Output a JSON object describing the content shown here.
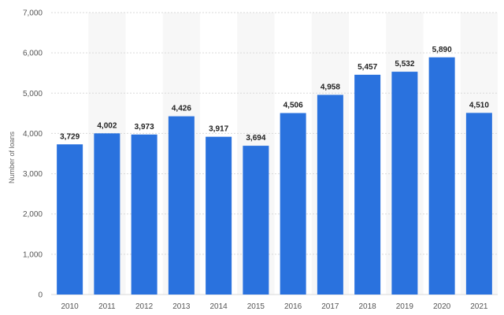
{
  "chart_data": {
    "type": "bar",
    "title": "",
    "xlabel": "",
    "ylabel": "Number of loans",
    "categories": [
      "2010",
      "2011",
      "2012",
      "2013",
      "2014",
      "2015",
      "2016",
      "2017",
      "2018",
      "2019",
      "2020",
      "2021"
    ],
    "values": [
      3729,
      4002,
      3973,
      4426,
      3917,
      3694,
      4506,
      4958,
      5457,
      5532,
      5890,
      4510
    ],
    "value_labels": [
      "3,729",
      "4,002",
      "3,973",
      "4,426",
      "3,917",
      "3,694",
      "4,506",
      "4,958",
      "5,457",
      "5,532",
      "5,890",
      "4,510"
    ],
    "ylim": [
      0,
      7000
    ],
    "y_ticks": [
      0,
      1000,
      2000,
      3000,
      4000,
      5000,
      6000,
      7000
    ],
    "y_tick_labels": [
      "0",
      "1,000",
      "2,000",
      "3,000",
      "4,000",
      "5,000",
      "6,000",
      "7,000"
    ],
    "grid": true,
    "legend": "none",
    "colors": {
      "bar": "#2a72de",
      "alt_band": "#f7f7f7",
      "grid": "#d9d9d9"
    }
  }
}
